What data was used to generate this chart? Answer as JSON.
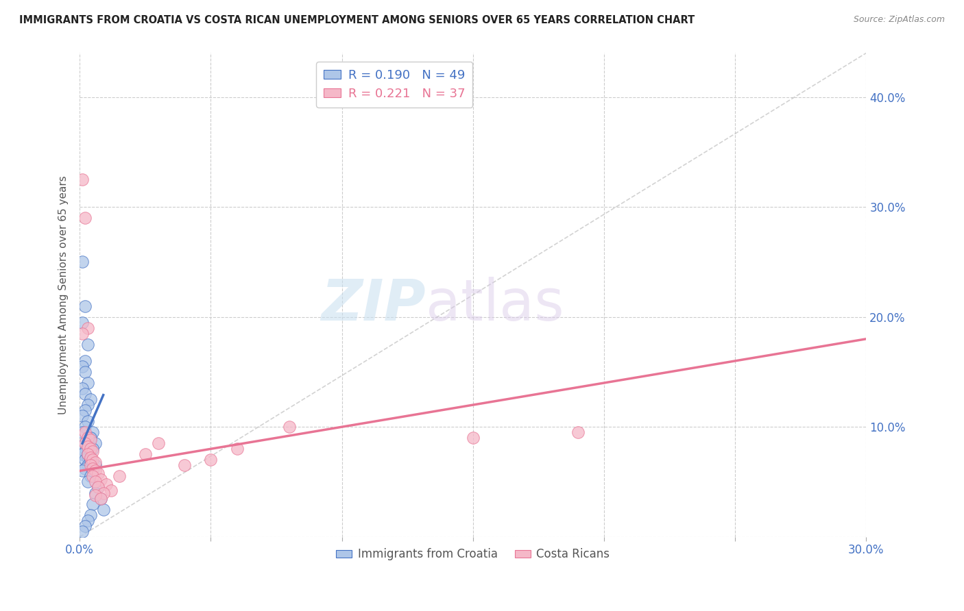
{
  "title": "IMMIGRANTS FROM CROATIA VS COSTA RICAN UNEMPLOYMENT AMONG SENIORS OVER 65 YEARS CORRELATION CHART",
  "source": "Source: ZipAtlas.com",
  "ylabel": "Unemployment Among Seniors over 65 years",
  "xlim": [
    0.0,
    0.3
  ],
  "ylim": [
    0.0,
    0.44
  ],
  "xticks": [
    0.0,
    0.05,
    0.1,
    0.15,
    0.2,
    0.25,
    0.3
  ],
  "yticks": [
    0.0,
    0.1,
    0.2,
    0.3,
    0.4
  ],
  "xtick_labels_left": "0.0%",
  "xtick_labels_right": "30.0%",
  "ytick_labels": [
    "10.0%",
    "20.0%",
    "30.0%",
    "40.0%"
  ],
  "legend_label1": "Immigrants from Croatia",
  "legend_label2": "Costa Ricans",
  "r1": 0.19,
  "n1": 49,
  "r2": 0.221,
  "n2": 37,
  "color_blue_fill": "#aec6e8",
  "color_blue_edge": "#4472c4",
  "color_blue_line": "#4472c4",
  "color_blue_text": "#4472c4",
  "color_pink_fill": "#f5b8c8",
  "color_pink_edge": "#e87494",
  "color_pink_line": "#e87494",
  "color_pink_text": "#e87494",
  "color_grid": "#cccccc",
  "color_diag": "#bbbbbb",
  "watermark_zip": "ZIP",
  "watermark_atlas": "atlas",
  "scatter_blue_x": [
    0.001,
    0.002,
    0.001,
    0.003,
    0.002,
    0.001,
    0.002,
    0.003,
    0.001,
    0.002,
    0.004,
    0.003,
    0.002,
    0.001,
    0.003,
    0.002,
    0.001,
    0.004,
    0.003,
    0.002,
    0.001,
    0.003,
    0.002,
    0.001,
    0.003,
    0.002,
    0.004,
    0.003,
    0.002,
    0.001,
    0.005,
    0.004,
    0.006,
    0.005,
    0.003,
    0.004,
    0.006,
    0.005,
    0.004,
    0.003,
    0.007,
    0.006,
    0.008,
    0.005,
    0.009,
    0.004,
    0.003,
    0.002,
    0.001
  ],
  "scatter_blue_y": [
    0.25,
    0.21,
    0.195,
    0.175,
    0.16,
    0.155,
    0.15,
    0.14,
    0.135,
    0.13,
    0.125,
    0.12,
    0.115,
    0.11,
    0.105,
    0.1,
    0.095,
    0.09,
    0.088,
    0.085,
    0.082,
    0.08,
    0.078,
    0.075,
    0.072,
    0.07,
    0.068,
    0.065,
    0.062,
    0.06,
    0.095,
    0.09,
    0.085,
    0.08,
    0.075,
    0.07,
    0.065,
    0.06,
    0.055,
    0.05,
    0.045,
    0.04,
    0.035,
    0.03,
    0.025,
    0.02,
    0.015,
    0.01,
    0.005
  ],
  "scatter_pink_x": [
    0.001,
    0.002,
    0.003,
    0.001,
    0.002,
    0.003,
    0.004,
    0.002,
    0.003,
    0.004,
    0.005,
    0.003,
    0.004,
    0.005,
    0.006,
    0.004,
    0.005,
    0.006,
    0.007,
    0.005,
    0.008,
    0.006,
    0.01,
    0.007,
    0.012,
    0.009,
    0.006,
    0.008,
    0.025,
    0.03,
    0.04,
    0.05,
    0.06,
    0.08,
    0.15,
    0.19,
    0.015
  ],
  "scatter_pink_y": [
    0.325,
    0.29,
    0.19,
    0.185,
    0.095,
    0.09,
    0.088,
    0.085,
    0.082,
    0.08,
    0.078,
    0.075,
    0.072,
    0.07,
    0.068,
    0.065,
    0.062,
    0.06,
    0.058,
    0.055,
    0.052,
    0.05,
    0.048,
    0.045,
    0.042,
    0.04,
    0.038,
    0.035,
    0.075,
    0.085,
    0.065,
    0.07,
    0.08,
    0.1,
    0.09,
    0.095,
    0.055
  ],
  "blue_line_x": [
    0.001,
    0.009
  ],
  "blue_line_y_intercept": 0.085,
  "blue_line_slope": 5.5,
  "pink_line_x0": 0.0,
  "pink_line_x1": 0.3,
  "pink_line_y0": 0.06,
  "pink_line_y1": 0.18
}
